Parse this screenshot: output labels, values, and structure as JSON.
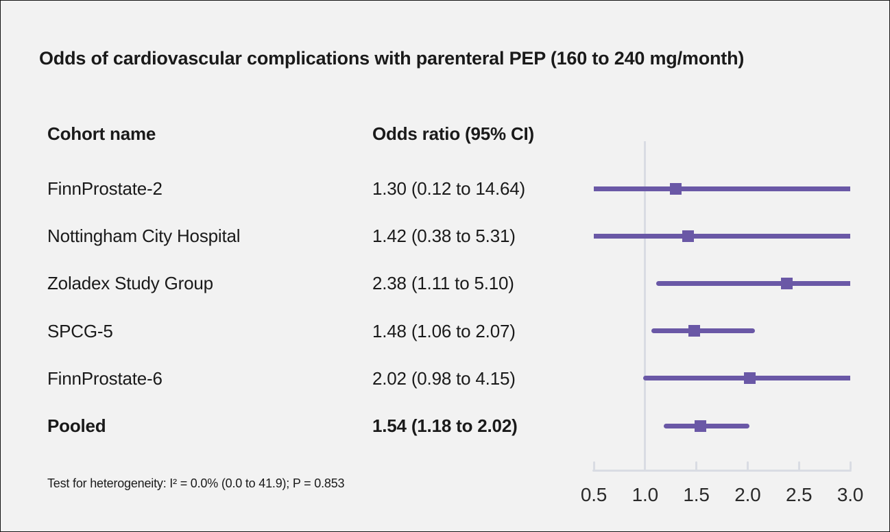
{
  "title": "Odds of cardiovascular complications with parenteral PEP (160 to 240 mg/month)",
  "table": {
    "cohort_header": "Cohort name",
    "or_header": "Odds ratio (95% CI)"
  },
  "footnote": "Test for heterogeneity: I² = 0.0% (0.0 to 41.9); P = 0.853",
  "colors": {
    "background": "#f2f2f2",
    "accent_purple": "#6a58a6",
    "axis_gray": "#d9dce3",
    "text": "#1a1a1a"
  },
  "chart_data": {
    "type": "forest",
    "title": "Odds of cardiovascular complications with parenteral PEP (160 to 240 mg/month)",
    "xlabel": "",
    "ylabel": "",
    "xlim": [
      0.5,
      3.0
    ],
    "scale": "linear",
    "reference_line": 1.0,
    "x_ticks": [
      0.5,
      1.0,
      1.5,
      2.0,
      2.5,
      3.0
    ],
    "x_tick_labels": [
      "0.5",
      "1.0",
      "1.5",
      "2.0",
      "2.5",
      "3.0"
    ],
    "grid": false,
    "legend": "none",
    "rows": [
      {
        "label": "FinnProstate-2",
        "display": "1.30 (0.12 to 14.64)",
        "or": 1.3,
        "ci_low": 0.12,
        "ci_high": 14.64,
        "bold": false
      },
      {
        "label": "Nottingham City Hospital",
        "display": "1.42 (0.38 to 5.31)",
        "or": 1.42,
        "ci_low": 0.38,
        "ci_high": 5.31,
        "bold": false
      },
      {
        "label": "Zoladex Study Group",
        "display": "2.38 (1.11 to 5.10)",
        "or": 2.38,
        "ci_low": 1.11,
        "ci_high": 5.1,
        "bold": false
      },
      {
        "label": "SPCG-5",
        "display": "1.48 (1.06 to 2.07)",
        "or": 1.48,
        "ci_low": 1.06,
        "ci_high": 2.07,
        "bold": false
      },
      {
        "label": "FinnProstate-6",
        "display": "2.02 (0.98 to 4.15)",
        "or": 2.02,
        "ci_low": 0.98,
        "ci_high": 4.15,
        "bold": false
      },
      {
        "label": "Pooled",
        "display": "1.54 (1.18 to 2.02)",
        "or": 1.54,
        "ci_low": 1.18,
        "ci_high": 2.02,
        "bold": true
      }
    ]
  }
}
